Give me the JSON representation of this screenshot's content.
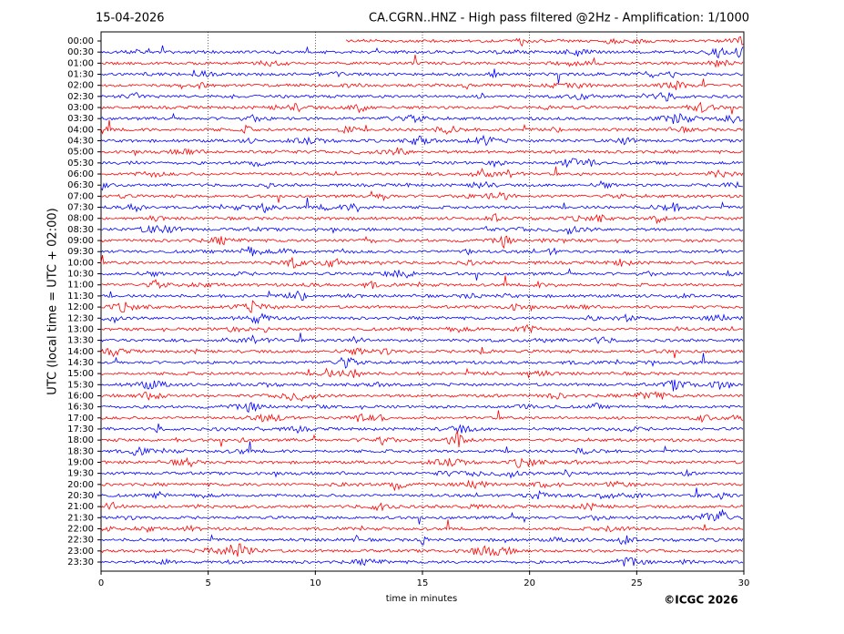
{
  "chart_data": {
    "type": "helicorder",
    "date": "15-04-2026",
    "title": "CA.CGRN..HNZ - High pass filtered @2Hz - Amplification: 1/1000",
    "ylabel": "UTC (local time = UTC + 02:00)",
    "xlabel": "time in minutes",
    "copyright": "©ICGC 2026",
    "categories": [
      "00:00",
      "00:30",
      "01:00",
      "01:30",
      "02:00",
      "02:30",
      "03:00",
      "03:30",
      "04:00",
      "04:30",
      "05:00",
      "05:30",
      "06:00",
      "06:30",
      "07:00",
      "07:30",
      "08:00",
      "08:30",
      "09:00",
      "09:30",
      "10:00",
      "10:30",
      "11:00",
      "11:30",
      "12:00",
      "12:30",
      "13:00",
      "13:30",
      "14:00",
      "14:30",
      "15:00",
      "15:30",
      "16:00",
      "16:30",
      "17:00",
      "17:30",
      "18:00",
      "18:30",
      "19:00",
      "19:30",
      "20:00",
      "20:30",
      "21:00",
      "21:30",
      "22:00",
      "22:30",
      "23:00",
      "23:30"
    ],
    "colors": [
      "#ff0000",
      "#0000ff"
    ],
    "xlim": [
      0,
      30
    ],
    "xticks": [
      0,
      5,
      10,
      15,
      20,
      25,
      30
    ],
    "grid": true
  }
}
